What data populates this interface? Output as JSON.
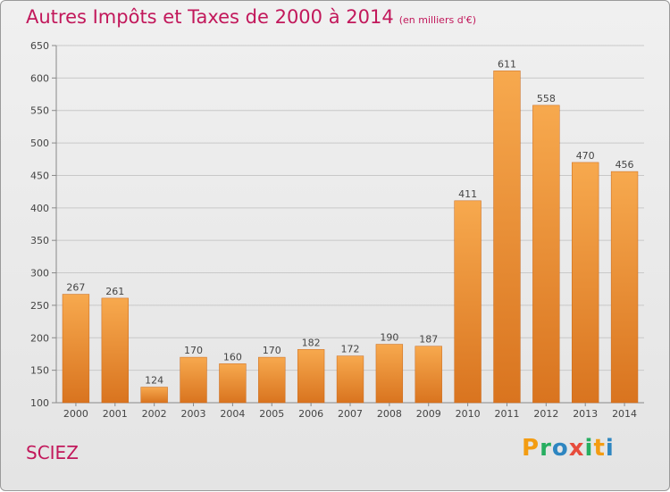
{
  "header": {
    "title": "Autres Impôts et Taxes de 2000 à 2014",
    "subtitle": "(en milliers d'€)"
  },
  "footer": {
    "commune": "SCIEZ",
    "brand_letters": [
      "P",
      "r",
      "o",
      "x",
      "i",
      "t",
      "i"
    ],
    "brand_colors": [
      "#f39c12",
      "#27ae60",
      "#2e86c1",
      "#e74c3c",
      "#27ae60",
      "#f39c12",
      "#2e86c1"
    ]
  },
  "chart_data": {
    "type": "bar",
    "title": "Autres Impôts et Taxes de 2000 à 2014",
    "subtitle": "(en milliers d'€)",
    "xlabel": "",
    "ylabel": "",
    "categories": [
      "2000",
      "2001",
      "2002",
      "2003",
      "2004",
      "2005",
      "2006",
      "2007",
      "2008",
      "2009",
      "2010",
      "2011",
      "2012",
      "2013",
      "2014"
    ],
    "values": [
      267,
      261,
      124,
      170,
      160,
      170,
      182,
      172,
      190,
      187,
      411,
      611,
      558,
      470,
      456
    ],
    "ylim": [
      100,
      650
    ],
    "yticks": [
      100,
      150,
      200,
      250,
      300,
      350,
      400,
      450,
      500,
      550,
      600,
      650
    ],
    "grid": true,
    "colors": {
      "bar_light": "#f7a94e",
      "bar_dark": "#d9741f",
      "grid": "#c8c8c8",
      "text": "#444444"
    }
  }
}
